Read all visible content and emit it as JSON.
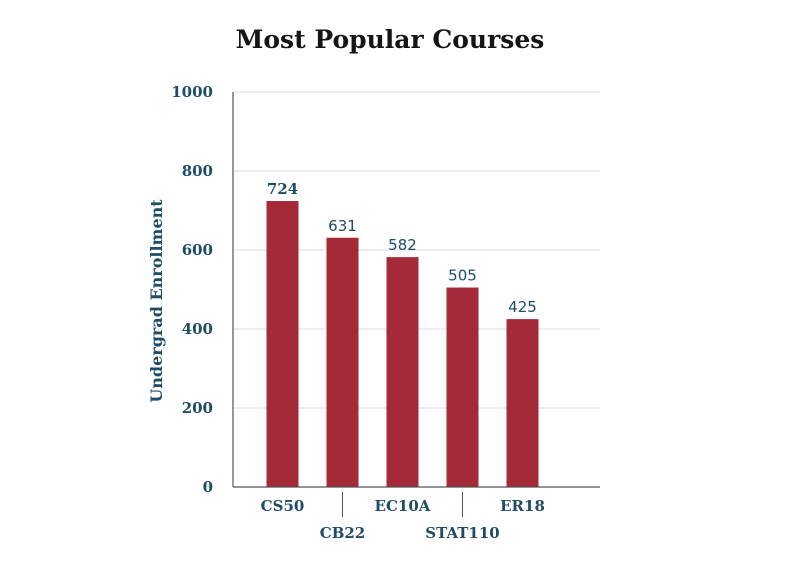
{
  "chart_data": {
    "type": "bar",
    "title": "Most Popular Courses",
    "xlabel": "",
    "ylabel": "Undergrad Enrollment",
    "categories": [
      "CS50",
      "CB22",
      "EC10A",
      "STAT110",
      "ER18"
    ],
    "values": [
      724,
      631,
      582,
      505,
      425
    ],
    "value_labels": [
      "724",
      "631",
      "582",
      "505",
      "425"
    ],
    "highlight_index": 0,
    "ylim": [
      0,
      1000
    ],
    "yticks": [
      0,
      200,
      400,
      600,
      800,
      1000
    ],
    "ytick_labels": [
      "0",
      "200",
      "400",
      "600",
      "800",
      "1000"
    ],
    "grid": true,
    "legend": "none",
    "colors": {
      "bar": "#a52a37",
      "text": "#1f4c66",
      "title": "#151515"
    }
  }
}
